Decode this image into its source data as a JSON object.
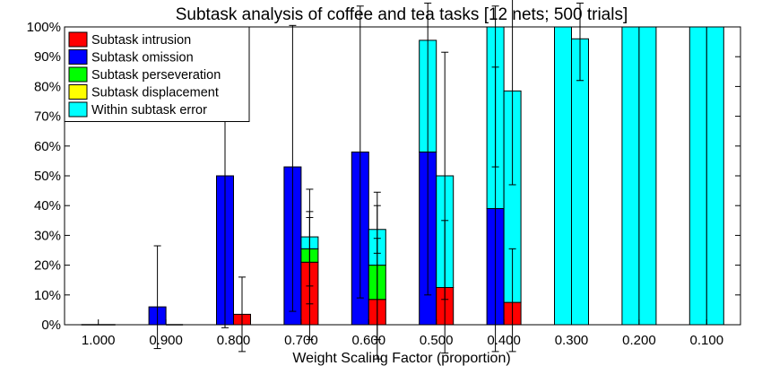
{
  "chart_data": {
    "type": "bar",
    "title": "Subtask analysis of coffee and tea tasks [12 nets; 500 trials]",
    "xlabel": "Weight Scaling Factor (proportion)",
    "ylabel": "",
    "ylim": [
      0,
      100
    ],
    "yticks": [
      "0%",
      "10%",
      "20%",
      "30%",
      "40%",
      "50%",
      "60%",
      "70%",
      "80%",
      "90%",
      "100%"
    ],
    "categories": [
      "1.000",
      "0.900",
      "0.800",
      "0.700",
      "0.600",
      "0.500",
      "0.400",
      "0.300",
      "0.200",
      "0.100"
    ],
    "grid": false,
    "legend_position": "top-left",
    "series": [
      {
        "name": "Subtask intrusion",
        "color": "#ff0000"
      },
      {
        "name": "Subtask omission",
        "color": "#0000ff"
      },
      {
        "name": "Subtask perseveration",
        "color": "#00ff00"
      },
      {
        "name": "Subtask displacement",
        "color": "#ffff00"
      },
      {
        "name": "Within subtask error",
        "color": "#00ffff"
      }
    ],
    "bar_groups": [
      "coffee",
      "tea"
    ],
    "stacks": {
      "coffee": {
        "Subtask intrusion": [
          0,
          0,
          0,
          0,
          0,
          0,
          0,
          0,
          0,
          0
        ],
        "Subtask omission": [
          0,
          6,
          50,
          53,
          58,
          58,
          39,
          0,
          0,
          0
        ],
        "Subtask perseveration": [
          0,
          0,
          0,
          0,
          0,
          0,
          0,
          0,
          0,
          0
        ],
        "Subtask displacement": [
          0,
          0,
          0,
          0,
          0,
          0,
          0,
          0,
          0,
          0
        ],
        "Within subtask error": [
          0,
          0,
          0,
          0,
          0,
          37.5,
          61,
          100,
          100,
          100
        ]
      },
      "tea": {
        "Subtask intrusion": [
          0,
          0,
          3.5,
          21,
          8.5,
          12.5,
          7.5,
          0,
          0,
          0
        ],
        "Subtask omission": [
          0,
          0,
          0,
          0,
          0,
          0,
          0,
          0,
          0,
          0
        ],
        "Subtask perseveration": [
          0,
          0,
          0,
          4.5,
          11.5,
          0,
          0,
          0,
          0,
          0
        ],
        "Subtask displacement": [
          0,
          0,
          0,
          0,
          0,
          0,
          0,
          0,
          0,
          0
        ],
        "Within subtask error": [
          0,
          0,
          0,
          4,
          12,
          37.5,
          71,
          96,
          100,
          100
        ]
      }
    },
    "error_bars": [
      {
        "category": "0.900",
        "bar": "coffee",
        "center": 6,
        "low": -8,
        "high": 26.5
      },
      {
        "category": "0.800",
        "bar": "coffee",
        "center": 50,
        "low": -1,
        "high": 100
      },
      {
        "category": "0.800",
        "bar": "tea",
        "center": 3.5,
        "low": -9,
        "high": 16
      },
      {
        "category": "0.700",
        "bar": "coffee",
        "center": 53,
        "low": 4.5,
        "high": 100.5
      },
      {
        "category": "0.700",
        "bar": "tea",
        "center": 21,
        "low": -5,
        "high": 45.5
      },
      {
        "category": "0.700",
        "bar": "tea",
        "center": 25.5,
        "low": 7,
        "high": 38
      },
      {
        "category": "0.700",
        "bar": "tea",
        "center": 29.5,
        "low": 13,
        "high": 36
      },
      {
        "category": "0.600",
        "bar": "coffee",
        "center": 58,
        "low": 9,
        "high": 107
      },
      {
        "category": "0.600",
        "bar": "tea",
        "center": 8.5,
        "low": -11.5,
        "high": 29
      },
      {
        "category": "0.600",
        "bar": "tea",
        "center": 20,
        "low": -5,
        "high": 44.5
      },
      {
        "category": "0.600",
        "bar": "tea",
        "center": 32,
        "low": 24,
        "high": 40
      },
      {
        "category": "0.500",
        "bar": "coffee",
        "center": 95.5,
        "low": 10,
        "high": 108
      },
      {
        "category": "0.500",
        "bar": "tea",
        "center": 12.5,
        "low": -9.5,
        "high": 35
      },
      {
        "category": "0.500",
        "bar": "tea",
        "center": 50,
        "low": 8.5,
        "high": 91.5
      },
      {
        "category": "0.400",
        "bar": "coffee",
        "center": 39,
        "low": -9,
        "high": 86.5
      },
      {
        "category": "0.400",
        "bar": "coffee",
        "center": 100,
        "low": 53,
        "high": 107
      },
      {
        "category": "0.400",
        "bar": "tea",
        "center": 7.5,
        "low": -9,
        "high": 25.5
      },
      {
        "category": "0.400",
        "bar": "tea",
        "center": 79,
        "low": 47,
        "high": 110
      },
      {
        "category": "0.300",
        "bar": "tea",
        "center": 96,
        "low": 82,
        "high": 108
      },
      {
        "category": "0.200",
        "bar": "coffee",
        "center": 100,
        "low": 100,
        "high": 100
      },
      {
        "category": "0.200",
        "bar": "tea",
        "center": 100,
        "low": 100,
        "high": 100
      },
      {
        "category": "0.100",
        "bar": "coffee",
        "center": 100,
        "low": 100,
        "high": 100
      },
      {
        "category": "0.100",
        "bar": "tea",
        "center": 100,
        "low": 100,
        "high": 100
      }
    ]
  }
}
